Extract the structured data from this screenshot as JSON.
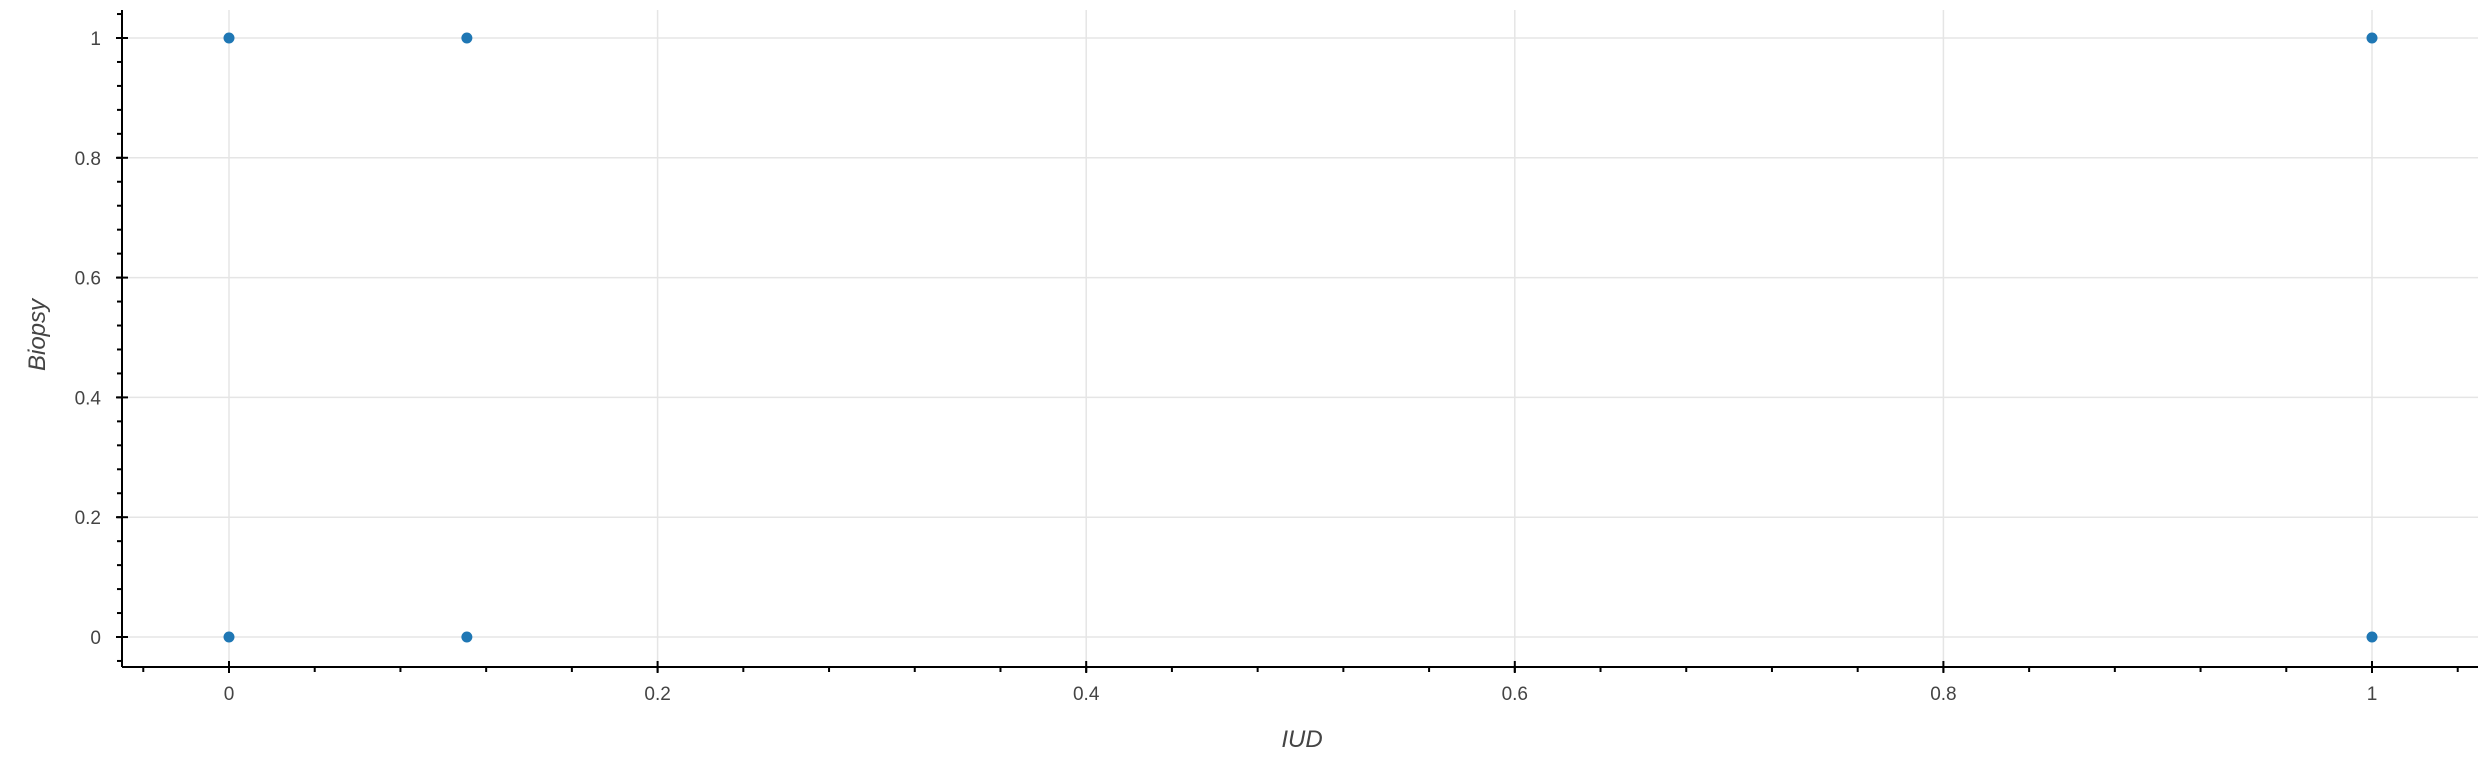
{
  "chart_data": {
    "type": "scatter",
    "title": "",
    "xlabel": "IUD",
    "ylabel": "Biopsy",
    "xlim": [
      -0.05,
      1.05
    ],
    "ylim": [
      -0.05,
      1.05
    ],
    "x_ticks": [
      "0",
      "0.2",
      "0.4",
      "0.6",
      "0.8",
      "1"
    ],
    "y_ticks": [
      "0",
      "0.2",
      "0.4",
      "0.6",
      "0.8",
      "1"
    ],
    "grid": true,
    "legend": "none",
    "series": [
      {
        "color": "#1f77b4",
        "points": [
          {
            "x": 0,
            "y": 1
          },
          {
            "x": 0.111,
            "y": 1
          },
          {
            "x": 1,
            "y": 1
          },
          {
            "x": 0,
            "y": 0
          },
          {
            "x": 0.111,
            "y": 0
          },
          {
            "x": 1,
            "y": 0
          }
        ]
      }
    ]
  }
}
